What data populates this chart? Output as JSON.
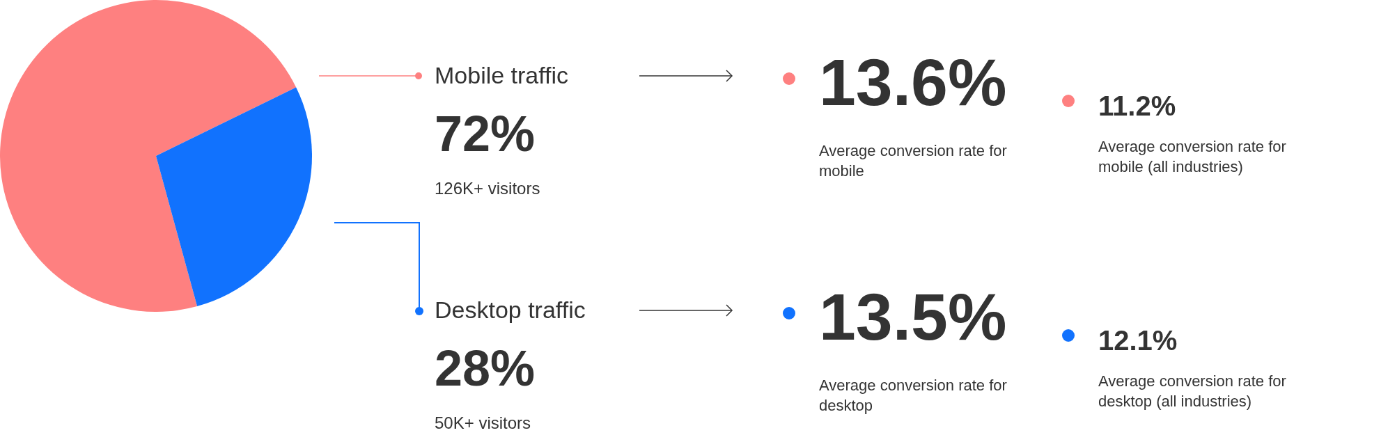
{
  "chart_data": {
    "type": "pie",
    "categories": [
      "Mobile traffic",
      "Desktop traffic"
    ],
    "values": [
      72,
      28
    ],
    "colors": [
      "#fe8080",
      "#1172fe"
    ],
    "value_labels": [
      "72%",
      "28%"
    ],
    "legend": "right",
    "annotations": [
      "126K+ visitors",
      "50K+ visitors",
      "13.6%",
      "Average conversion rate for mobile",
      "11.2%",
      "Average conversion rate for mobile (all industries)",
      "13.5%",
      "Average conversion rate for desktop",
      "12.1%",
      "Average conversion rate for desktop (all industries)"
    ]
  }
}
